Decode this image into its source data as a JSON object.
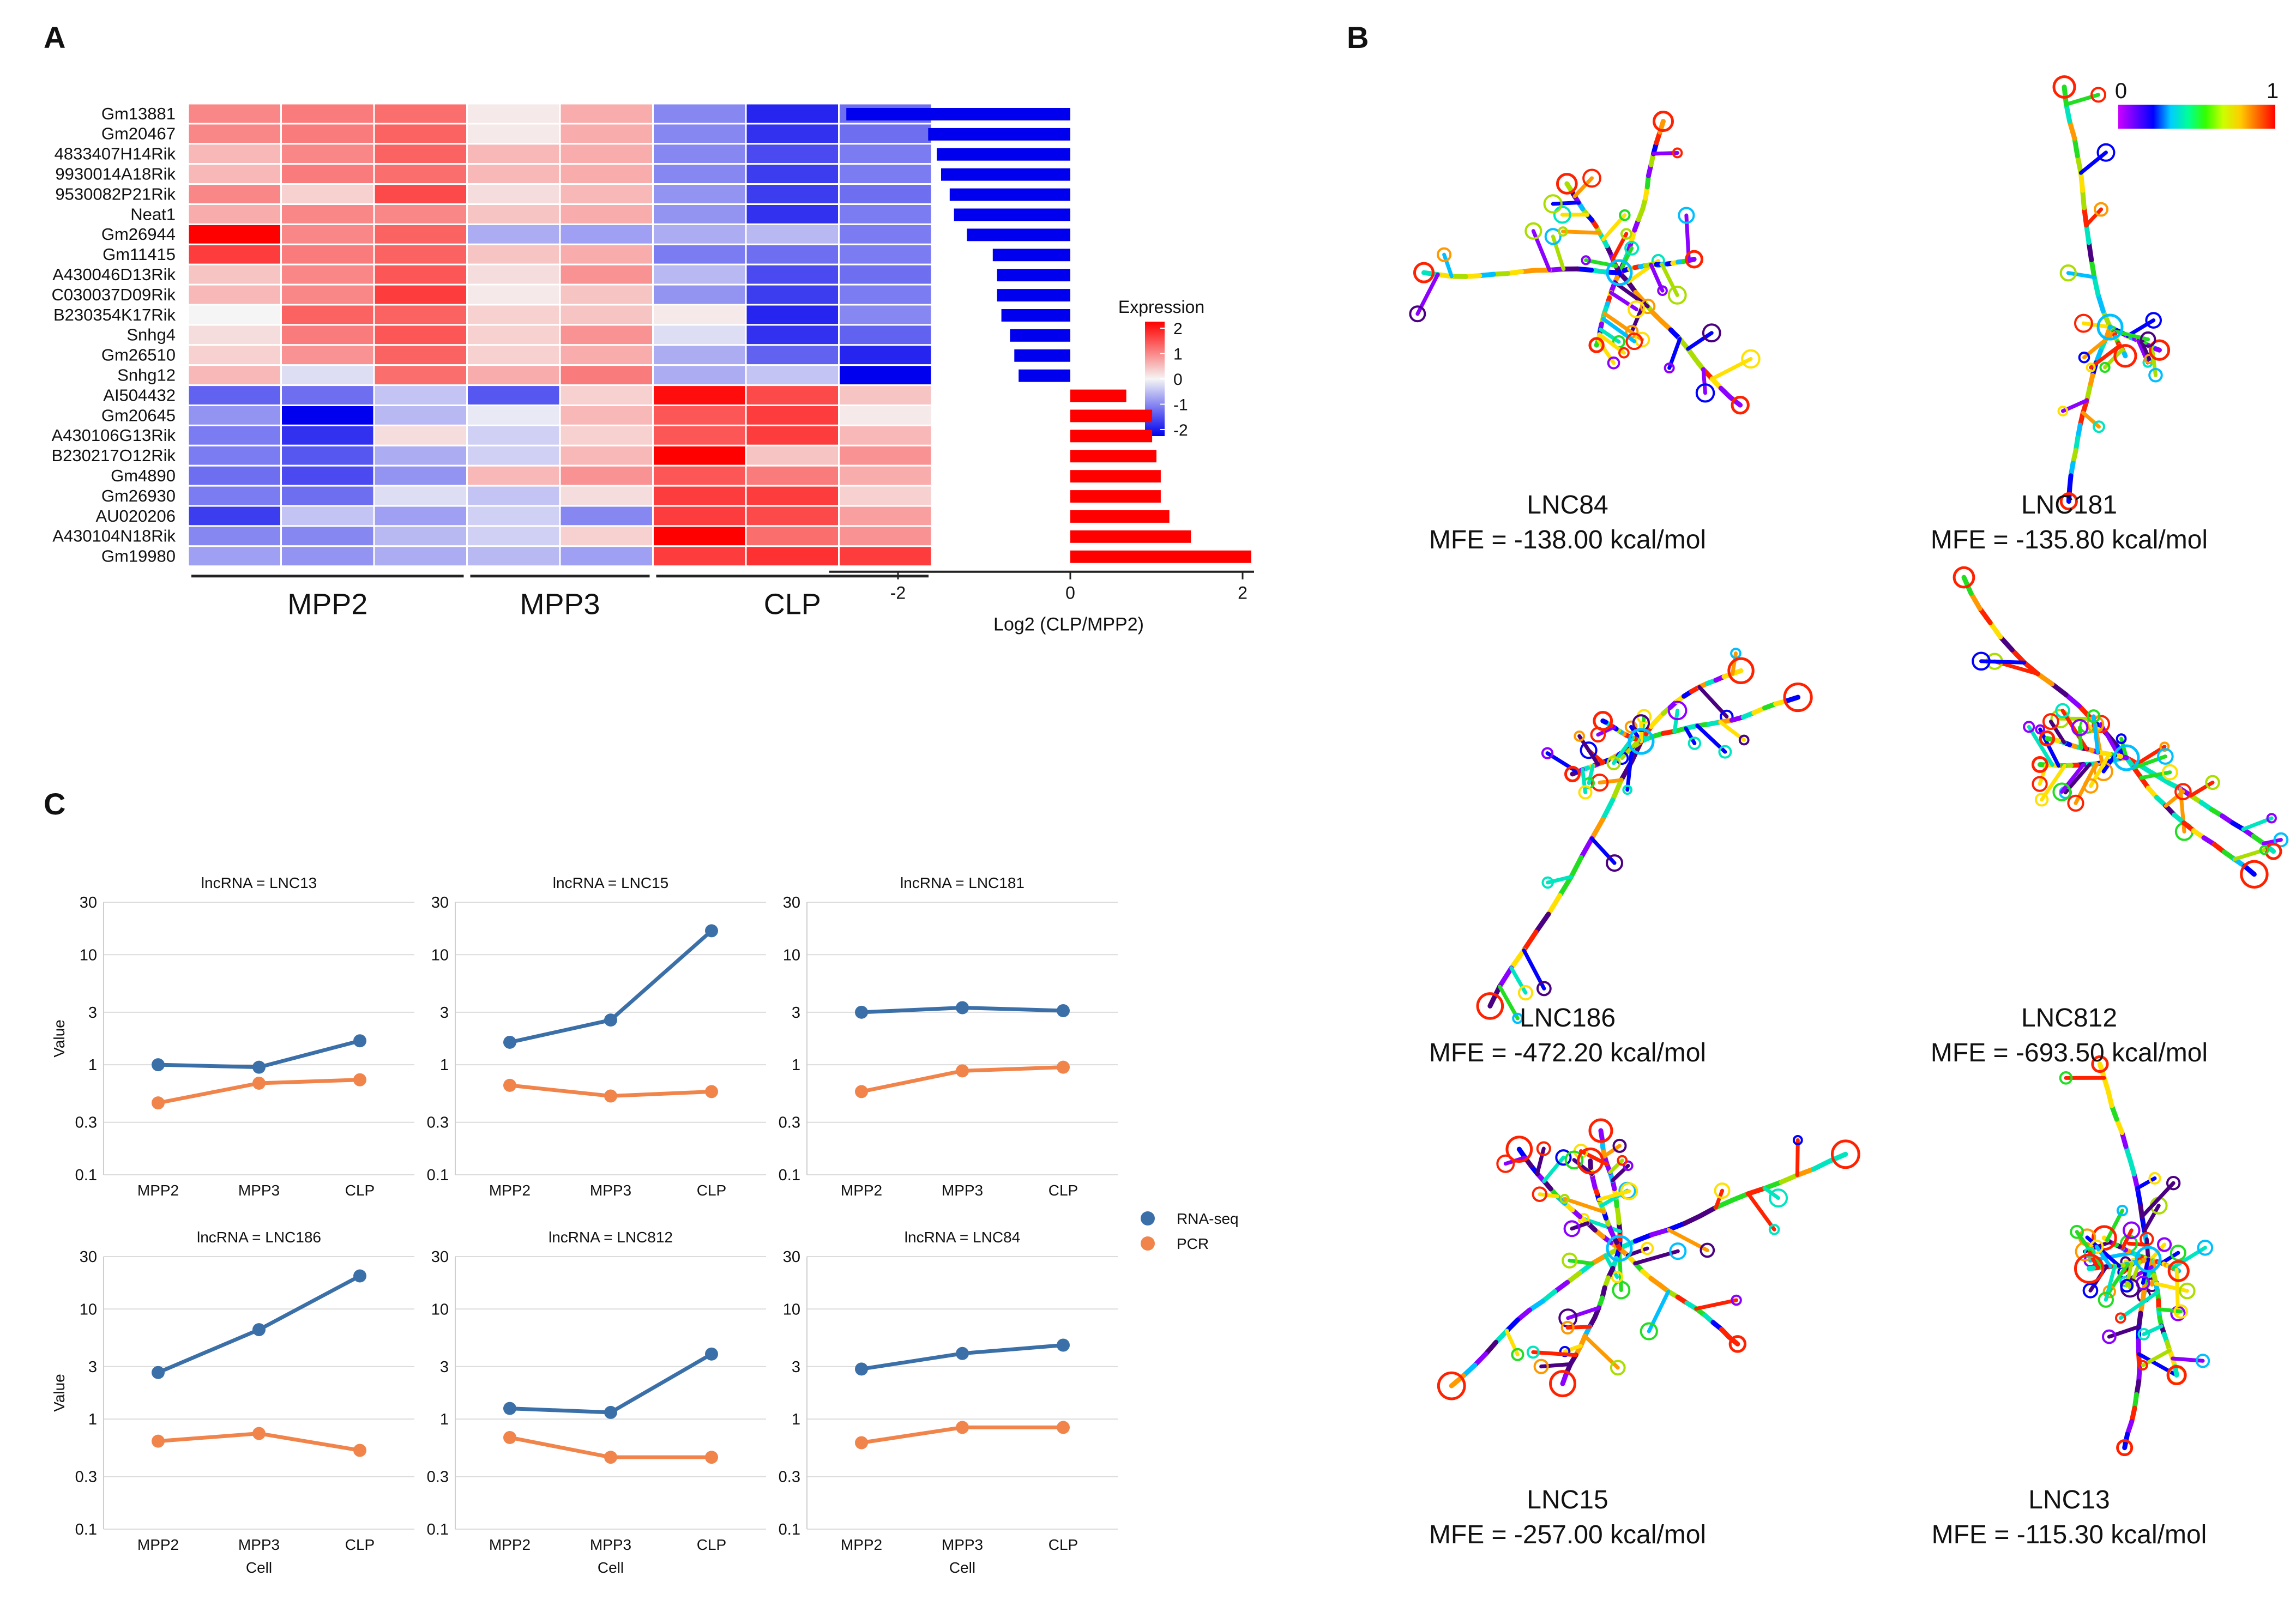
{
  "panels": {
    "a": "A",
    "b": "B",
    "c": "C"
  },
  "colors": {
    "heat_low": "#0000ee",
    "heat_mid": "#f5f5f5",
    "heat_high": "#ff0000",
    "bar_neg": "#0000ee",
    "bar_pos": "#ff0000",
    "rna_seq": "#3b6fa8",
    "pcr": "#f0844a"
  },
  "chart_data": [
    {
      "type": "heatmap",
      "id": "A-heatmap",
      "rows": [
        "Gm13881",
        "Gm20467",
        "4833407H14Rik",
        "9930014A18Rik",
        "9530082P21Rik",
        "Neat1",
        "Gm26944",
        "Gm11415",
        "A430046D13Rik",
        "C030037D09Rik",
        "B230354K17Rik",
        "Snhg4",
        "Gm26510",
        "Snhg12",
        "AI504432",
        "Gm20645",
        "A430106G13Rik",
        "B230217O12Rik",
        "Gm4890",
        "Gm26930",
        "AU020206",
        "A430104N18Rik",
        "Gm19980"
      ],
      "groups": [
        "MPP2",
        "MPP3",
        "CLP"
      ],
      "columns_per_group": [
        3,
        2,
        3
      ],
      "values": [
        [
          0.9,
          1.0,
          1.1,
          0.1,
          0.6,
          -0.9,
          -1.7,
          -1.1
        ],
        [
          0.9,
          1.0,
          1.2,
          0.1,
          0.6,
          -0.9,
          -1.6,
          -1.1
        ],
        [
          0.5,
          0.9,
          1.2,
          0.5,
          0.6,
          -0.9,
          -1.4,
          -1.0
        ],
        [
          0.5,
          1.0,
          1.1,
          0.5,
          0.6,
          -0.9,
          -1.5,
          -1.0
        ],
        [
          0.9,
          0.3,
          1.4,
          0.2,
          0.5,
          -0.8,
          -1.5,
          -1.1
        ],
        [
          0.6,
          0.9,
          0.9,
          0.4,
          0.6,
          -0.8,
          -1.6,
          -1.0
        ],
        [
          2.0,
          0.9,
          1.2,
          -0.6,
          -0.7,
          -0.6,
          -0.5,
          -1.0
        ],
        [
          1.5,
          1.0,
          1.2,
          0.4,
          0.6,
          -1.0,
          -1.1,
          -1.0
        ],
        [
          0.4,
          0.9,
          1.3,
          0.2,
          0.8,
          -0.5,
          -1.4,
          -1.1
        ],
        [
          0.5,
          0.9,
          1.5,
          0.1,
          0.4,
          -0.8,
          -1.5,
          -1.0
        ],
        [
          0.0,
          1.2,
          1.2,
          0.3,
          0.4,
          0.1,
          -1.7,
          -0.9
        ],
        [
          0.2,
          1.0,
          1.3,
          0.3,
          0.8,
          -0.2,
          -1.6,
          -1.2
        ],
        [
          0.3,
          0.8,
          1.2,
          0.3,
          0.6,
          -0.6,
          -1.2,
          -1.7
        ],
        [
          0.5,
          -0.2,
          1.1,
          0.6,
          1.0,
          -0.6,
          -0.4,
          -2.0
        ],
        [
          -1.2,
          -1.1,
          -0.4,
          -1.3,
          0.3,
          1.9,
          1.4,
          0.4
        ],
        [
          -0.8,
          -2.0,
          -0.5,
          -0.1,
          0.5,
          1.3,
          1.5,
          0.1
        ],
        [
          -1.0,
          -1.6,
          0.2,
          -0.3,
          0.3,
          1.3,
          1.5,
          0.5
        ],
        [
          -1.0,
          -1.3,
          -0.6,
          -0.3,
          0.5,
          2.0,
          0.4,
          0.8
        ],
        [
          -1.1,
          -1.4,
          -0.8,
          0.5,
          0.8,
          1.3,
          1.0,
          0.6
        ],
        [
          -1.0,
          -1.1,
          -0.2,
          -0.4,
          0.2,
          1.5,
          1.5,
          0.3
        ],
        [
          -1.5,
          -0.4,
          -0.7,
          -0.3,
          -0.9,
          1.5,
          1.4,
          0.7
        ],
        [
          -0.9,
          -0.9,
          -0.5,
          -0.3,
          0.3,
          2.0,
          1.1,
          0.8
        ],
        [
          -0.7,
          -0.8,
          -0.6,
          -0.5,
          -0.7,
          1.5,
          1.6,
          1.5
        ]
      ],
      "legend": {
        "title": "Expression",
        "ticks": [
          "2",
          "1",
          "0",
          "-1",
          "-2"
        ]
      },
      "group_labels": [
        "MPP2",
        "MPP3",
        "CLP"
      ]
    },
    {
      "type": "bar",
      "id": "A-bars",
      "orientation": "horizontal",
      "categories": [
        "Gm13881",
        "Gm20467",
        "4833407H14Rik",
        "9930014A18Rik",
        "9530082P21Rik",
        "Neat1",
        "Gm26944",
        "Gm11415",
        "A430046D13Rik",
        "C030037D09Rik",
        "B230354K17Rik",
        "Snhg4",
        "Gm26510",
        "Snhg12",
        "AI504432",
        "Gm20645",
        "A430106G13Rik",
        "B230217O12Rik",
        "Gm4890",
        "Gm26930",
        "AU020206",
        "A430104N18Rik",
        "Gm19980"
      ],
      "values": [
        -2.6,
        -1.65,
        -1.55,
        -1.5,
        -1.4,
        -1.35,
        -1.2,
        -0.9,
        -0.85,
        -0.85,
        -0.8,
        -0.7,
        -0.65,
        -0.6,
        0.65,
        0.95,
        0.95,
        1.0,
        1.05,
        1.05,
        1.15,
        1.4,
        2.1
      ],
      "xlim": [
        -2.8,
        2.4
      ],
      "xticks": [
        "-2",
        "0",
        "2"
      ],
      "xlabel": "Log2 (CLP/MPP2)"
    },
    {
      "type": "line",
      "id": "C-facets",
      "x": [
        "MPP2",
        "MPP3",
        "CLP"
      ],
      "xlabel": "Cell",
      "ylabel": "Value",
      "yscale": "log",
      "ylim": [
        0.1,
        30
      ],
      "yticks": [
        "30",
        "10",
        "3",
        "1",
        "0.3",
        "0.1"
      ],
      "legend": [
        "RNA-seq",
        "PCR"
      ],
      "facets": [
        {
          "title": "lncRNA = LNC13",
          "series": [
            {
              "name": "RNA-seq",
              "values": [
                1.0,
                0.95,
                1.65
              ]
            },
            {
              "name": "PCR",
              "values": [
                0.45,
                0.68,
                0.73
              ]
            }
          ]
        },
        {
          "title": "lncRNA = LNC15",
          "series": [
            {
              "name": "RNA-seq",
              "values": [
                1.6,
                2.55,
                16.5
              ]
            },
            {
              "name": "PCR",
              "values": [
                0.65,
                0.52,
                0.57
              ]
            }
          ]
        },
        {
          "title": "lncRNA = LNC181",
          "series": [
            {
              "name": "RNA-seq",
              "values": [
                3.0,
                3.3,
                3.1
              ]
            },
            {
              "name": "PCR",
              "values": [
                0.57,
                0.88,
                0.95
              ]
            }
          ]
        },
        {
          "title": "lncRNA = LNC186",
          "series": [
            {
              "name": "RNA-seq",
              "values": [
                2.65,
                6.5,
                20.0
              ]
            },
            {
              "name": "PCR",
              "values": [
                0.63,
                0.74,
                0.52
              ]
            }
          ]
        },
        {
          "title": "lncRNA = LNC812",
          "series": [
            {
              "name": "RNA-seq",
              "values": [
                1.25,
                1.15,
                3.9
              ]
            },
            {
              "name": "PCR",
              "values": [
                0.68,
                0.45,
                0.45
              ]
            }
          ]
        },
        {
          "title": "lncRNA = LNC84",
          "series": [
            {
              "name": "RNA-seq",
              "values": [
                2.85,
                3.95,
                4.7
              ]
            },
            {
              "name": "PCR",
              "values": [
                0.61,
                0.84,
                0.84
              ]
            }
          ]
        }
      ]
    }
  ],
  "structures": {
    "scale": {
      "min": "0",
      "max": "1"
    },
    "items": [
      {
        "name": "LNC84",
        "mfe": "MFE = -138.00 kcal/mol"
      },
      {
        "name": "LNC181",
        "mfe": "MFE = -135.80 kcal/mol"
      },
      {
        "name": "LNC186",
        "mfe": "MFE = -472.20 kcal/mol"
      },
      {
        "name": "LNC812",
        "mfe": "MFE = -693.50 kcal/mol"
      },
      {
        "name": "LNC15",
        "mfe": "MFE = -257.00 kcal/mol"
      },
      {
        "name": "LNC13",
        "mfe": "MFE = -115.30 kcal/mol"
      }
    ]
  }
}
